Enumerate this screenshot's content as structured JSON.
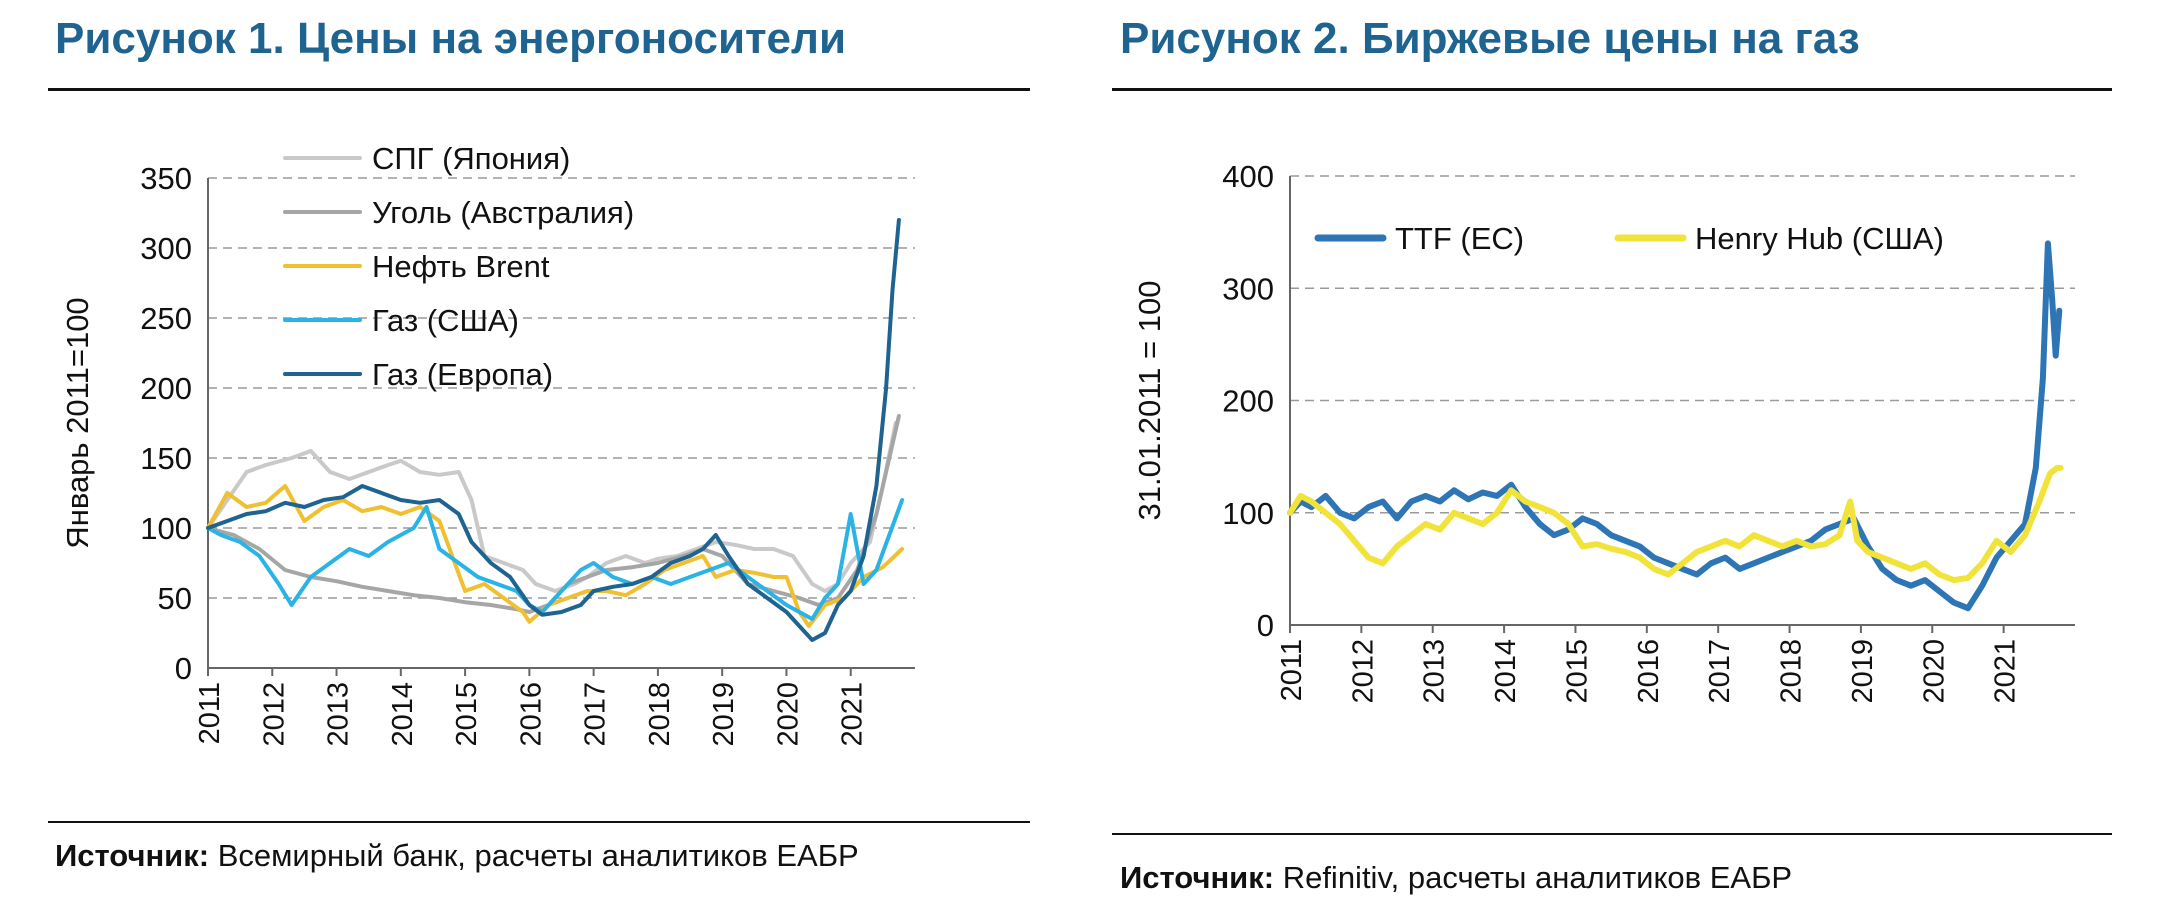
{
  "figure1": {
    "title": "Рисунок 1. Цены на энергоносители",
    "source_label": "Источник:",
    "source_text": " Всемирный банк, расчеты аналитиков ЕАБР"
  },
  "figure2": {
    "title": "Рисунок 2. Биржевые цены на газ",
    "source_label": "Источник:",
    "source_text": " Refinitiv, расчеты аналитиков ЕАБР"
  },
  "chart_data": [
    {
      "type": "line",
      "ylabel": "Январь 2011=100",
      "ylim": [
        0,
        350
      ],
      "yticks": [
        0,
        50,
        100,
        150,
        200,
        250,
        300,
        350
      ],
      "xlim": [
        2011,
        2022
      ],
      "xticks": [
        "2011",
        "2012",
        "2013",
        "2014",
        "2015",
        "2016",
        "2017",
        "2018",
        "2019",
        "2020",
        "2021"
      ],
      "grid": true,
      "legend_position": "top-left",
      "series": [
        {
          "name": "СПГ (Япония)",
          "color": "#c9c9c9",
          "x": [
            2011.0,
            2011.3,
            2011.6,
            2011.9,
            2012.3,
            2012.6,
            2012.9,
            2013.2,
            2013.5,
            2013.8,
            2014.0,
            2014.3,
            2014.6,
            2014.9,
            2015.1,
            2015.3,
            2015.6,
            2015.9,
            2016.1,
            2016.4,
            2016.7,
            2016.9,
            2017.2,
            2017.5,
            2017.8,
            2018.0,
            2018.3,
            2018.6,
            2018.9,
            2019.2,
            2019.5,
            2019.8,
            2020.1,
            2020.4,
            2020.6,
            2020.8,
            2021.0,
            2021.3,
            2021.5,
            2021.7
          ],
          "y": [
            100,
            120,
            140,
            145,
            150,
            155,
            140,
            135,
            140,
            145,
            148,
            140,
            138,
            140,
            120,
            80,
            75,
            70,
            60,
            55,
            60,
            65,
            75,
            80,
            75,
            78,
            80,
            85,
            90,
            88,
            85,
            85,
            80,
            60,
            55,
            60,
            75,
            90,
            130,
            175
          ]
        },
        {
          "name": "Уголь (Австралия)",
          "color": "#a6a6a6",
          "x": [
            2011.0,
            2011.4,
            2011.8,
            2012.2,
            2012.6,
            2013.0,
            2013.4,
            2013.8,
            2014.2,
            2014.6,
            2015.0,
            2015.4,
            2015.8,
            2016.0,
            2016.3,
            2016.6,
            2016.9,
            2017.2,
            2017.6,
            2018.0,
            2018.4,
            2018.7,
            2019.0,
            2019.4,
            2019.8,
            2020.2,
            2020.5,
            2020.8,
            2021.1,
            2021.4,
            2021.6,
            2021.75
          ],
          "y": [
            100,
            95,
            85,
            70,
            65,
            62,
            58,
            55,
            52,
            50,
            47,
            45,
            42,
            40,
            45,
            60,
            65,
            70,
            72,
            75,
            80,
            85,
            80,
            60,
            55,
            50,
            45,
            50,
            70,
            110,
            150,
            180
          ]
        },
        {
          "name": "Нефть Brent",
          "color": "#f0c030",
          "x": [
            2011.0,
            2011.3,
            2011.6,
            2011.9,
            2012.2,
            2012.5,
            2012.8,
            2013.1,
            2013.4,
            2013.7,
            2014.0,
            2014.3,
            2014.6,
            2014.8,
            2015.0,
            2015.3,
            2015.6,
            2015.9,
            2016.0,
            2016.3,
            2016.6,
            2016.9,
            2017.2,
            2017.5,
            2017.8,
            2018.1,
            2018.4,
            2018.7,
            2018.9,
            2019.2,
            2019.5,
            2019.8,
            2020.0,
            2020.2,
            2020.35,
            2020.6,
            2020.9,
            2021.2,
            2021.5,
            2021.8
          ],
          "y": [
            100,
            125,
            115,
            118,
            130,
            105,
            115,
            120,
            112,
            115,
            110,
            115,
            105,
            80,
            55,
            60,
            50,
            40,
            33,
            45,
            50,
            55,
            55,
            52,
            60,
            70,
            75,
            80,
            65,
            70,
            68,
            65,
            65,
            40,
            30,
            45,
            50,
            65,
            72,
            85
          ]
        },
        {
          "name": "Газ (США)",
          "color": "#2bb3e6",
          "x": [
            2011.0,
            2011.2,
            2011.5,
            2011.8,
            2012.1,
            2012.3,
            2012.6,
            2012.9,
            2013.2,
            2013.5,
            2013.8,
            2014.0,
            2014.2,
            2014.4,
            2014.6,
            2014.9,
            2015.2,
            2015.5,
            2015.8,
            2016.0,
            2016.2,
            2016.5,
            2016.8,
            2017.0,
            2017.3,
            2017.6,
            2017.9,
            2018.2,
            2018.5,
            2018.8,
            2019.1,
            2019.4,
            2019.7,
            2020.0,
            2020.2,
            2020.4,
            2020.6,
            2020.8,
            2021.0,
            2021.2,
            2021.4,
            2021.6,
            2021.8
          ],
          "y": [
            100,
            95,
            90,
            80,
            60,
            45,
            65,
            75,
            85,
            80,
            90,
            95,
            100,
            115,
            85,
            75,
            65,
            60,
            55,
            45,
            40,
            55,
            70,
            75,
            65,
            60,
            65,
            60,
            65,
            70,
            75,
            65,
            55,
            45,
            40,
            35,
            50,
            60,
            110,
            60,
            70,
            95,
            120
          ]
        },
        {
          "name": "Газ (Европа)",
          "color": "#1f6391",
          "x": [
            2011.0,
            2011.3,
            2011.6,
            2011.9,
            2012.2,
            2012.5,
            2012.8,
            2013.1,
            2013.4,
            2013.7,
            2014.0,
            2014.3,
            2014.6,
            2014.9,
            2015.1,
            2015.4,
            2015.7,
            2016.0,
            2016.2,
            2016.5,
            2016.8,
            2017.0,
            2017.3,
            2017.6,
            2017.9,
            2018.2,
            2018.5,
            2018.7,
            2018.9,
            2019.1,
            2019.4,
            2019.7,
            2020.0,
            2020.2,
            2020.4,
            2020.6,
            2020.8,
            2021.0,
            2021.2,
            2021.4,
            2021.55,
            2021.65,
            2021.75
          ],
          "y": [
            100,
            105,
            110,
            112,
            118,
            115,
            120,
            122,
            130,
            125,
            120,
            118,
            120,
            110,
            90,
            75,
            65,
            45,
            38,
            40,
            45,
            55,
            58,
            60,
            65,
            75,
            80,
            85,
            95,
            80,
            60,
            50,
            40,
            30,
            20,
            25,
            45,
            55,
            80,
            130,
            200,
            270,
            320
          ]
        }
      ]
    },
    {
      "type": "line",
      "ylabel": "31.01.2011 = 100",
      "ylim": [
        0,
        400
      ],
      "yticks": [
        0,
        100,
        200,
        300,
        400
      ],
      "xlim": [
        2011,
        2022
      ],
      "xticks": [
        "2011",
        "2012",
        "2013",
        "2014",
        "2015",
        "2016",
        "2017",
        "2018",
        "2019",
        "2020",
        "2021"
      ],
      "grid": true,
      "legend_position": "top",
      "series": [
        {
          "name": "TTF (ЕС)",
          "color": "#2e75b6",
          "x": [
            2011.0,
            2011.15,
            2011.3,
            2011.5,
            2011.7,
            2011.9,
            2012.1,
            2012.3,
            2012.5,
            2012.7,
            2012.9,
            2013.1,
            2013.3,
            2013.5,
            2013.7,
            2013.9,
            2014.1,
            2014.3,
            2014.5,
            2014.7,
            2014.9,
            2015.1,
            2015.3,
            2015.5,
            2015.7,
            2015.9,
            2016.1,
            2016.3,
            2016.5,
            2016.7,
            2016.9,
            2017.1,
            2017.3,
            2017.5,
            2017.7,
            2017.9,
            2018.1,
            2018.3,
            2018.5,
            2018.7,
            2018.9,
            2019.1,
            2019.3,
            2019.5,
            2019.7,
            2019.9,
            2020.1,
            2020.3,
            2020.5,
            2020.7,
            2020.9,
            2021.1,
            2021.3,
            2021.45,
            2021.55,
            2021.62,
            2021.68,
            2021.73,
            2021.78
          ],
          "y": [
            100,
            110,
            105,
            115,
            100,
            95,
            105,
            110,
            95,
            110,
            115,
            110,
            120,
            112,
            118,
            115,
            125,
            105,
            90,
            80,
            85,
            95,
            90,
            80,
            75,
            70,
            60,
            55,
            50,
            45,
            55,
            60,
            50,
            55,
            60,
            65,
            70,
            75,
            85,
            90,
            95,
            70,
            50,
            40,
            35,
            40,
            30,
            20,
            15,
            35,
            60,
            75,
            90,
            140,
            220,
            340,
            290,
            240,
            280
          ]
        },
        {
          "name": "Henry Hub (США)",
          "color": "#f2e33a",
          "x": [
            2011.0,
            2011.15,
            2011.3,
            2011.5,
            2011.7,
            2011.9,
            2012.1,
            2012.3,
            2012.5,
            2012.7,
            2012.9,
            2013.1,
            2013.3,
            2013.5,
            2013.7,
            2013.9,
            2014.1,
            2014.3,
            2014.5,
            2014.7,
            2014.9,
            2015.1,
            2015.3,
            2015.5,
            2015.7,
            2015.9,
            2016.1,
            2016.3,
            2016.5,
            2016.7,
            2016.9,
            2017.1,
            2017.3,
            2017.5,
            2017.7,
            2017.9,
            2018.1,
            2018.3,
            2018.5,
            2018.7,
            2018.85,
            2018.95,
            2019.1,
            2019.3,
            2019.5,
            2019.7,
            2019.9,
            2020.1,
            2020.3,
            2020.5,
            2020.7,
            2020.9,
            2021.1,
            2021.3,
            2021.5,
            2021.65,
            2021.75,
            2021.8
          ],
          "y": [
            100,
            115,
            110,
            100,
            90,
            75,
            60,
            55,
            70,
            80,
            90,
            85,
            100,
            95,
            90,
            100,
            120,
            110,
            105,
            100,
            90,
            70,
            72,
            68,
            65,
            60,
            50,
            45,
            55,
            65,
            70,
            75,
            70,
            80,
            75,
            70,
            75,
            70,
            72,
            80,
            110,
            75,
            65,
            60,
            55,
            50,
            55,
            45,
            40,
            42,
            55,
            75,
            65,
            80,
            110,
            135,
            140,
            140
          ]
        }
      ]
    }
  ]
}
